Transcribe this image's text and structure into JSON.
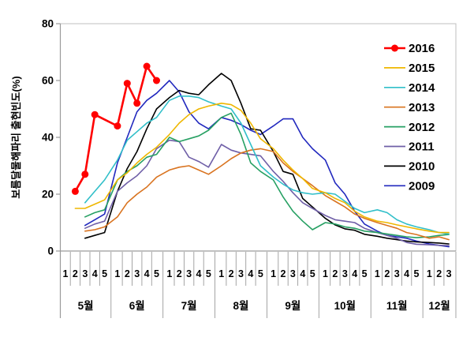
{
  "colors": {
    "background": "#ffffff",
    "plot_border": "#bfbfbf",
    "axis_line": "#9a9a9a",
    "separator_line": "#9a9a9a",
    "text": "#000000"
  },
  "chart_data": {
    "type": "line",
    "title": "",
    "y_axis": {
      "label": "보름달물해파리 출현빈도(%)",
      "min": 0,
      "max": 80,
      "ticks": [
        0,
        20,
        40,
        60,
        80
      ]
    },
    "x_axis": {
      "months": [
        {
          "label": "5월",
          "week_labels": [
            "1",
            "2",
            "3",
            "4",
            "5"
          ]
        },
        {
          "label": "6월",
          "week_labels": [
            "1",
            "2",
            "3",
            "4",
            "5"
          ]
        },
        {
          "label": "7월",
          "week_labels": [
            "1",
            "2",
            "3",
            "4",
            "5"
          ]
        },
        {
          "label": "8월",
          "week_labels": [
            "1",
            "2",
            "3",
            "4",
            "5"
          ]
        },
        {
          "label": "9월",
          "week_labels": [
            "1",
            "2",
            "3",
            "4",
            "5"
          ]
        },
        {
          "label": "10월",
          "week_labels": [
            "1",
            "2",
            "3",
            "4",
            "5"
          ]
        },
        {
          "label": "11월",
          "week_labels": [
            "1",
            "2",
            "3",
            "4",
            "5"
          ]
        },
        {
          "label": "12월",
          "week_labels": [
            "1",
            "2",
            "3"
          ]
        }
      ]
    },
    "legend": {
      "position": "right-inside",
      "order": [
        "2016",
        "2015",
        "2014",
        "2013",
        "2012",
        "2011",
        "2010",
        "2009"
      ]
    },
    "series": [
      {
        "name": "2016",
        "color": "#ff0000",
        "line_width": 2.6,
        "marker": true,
        "values": [
          null,
          21,
          27,
          48,
          null,
          44,
          59,
          52,
          65,
          60,
          null,
          null,
          null,
          null,
          null,
          null,
          null,
          null,
          null,
          null,
          null,
          null,
          null,
          null,
          null,
          null,
          null,
          null,
          null,
          null,
          null,
          null,
          null,
          null,
          null,
          null,
          null,
          null
        ]
      },
      {
        "name": "2015",
        "color": "#efb700",
        "line_width": 1.6,
        "marker": false,
        "values": [
          null,
          15,
          15,
          16.5,
          18,
          25,
          27.5,
          31,
          34,
          36.5,
          41,
          45,
          48,
          50,
          51,
          52,
          51.5,
          49.5,
          45,
          39.5,
          36,
          32,
          28.5,
          25.5,
          22,
          20.5,
          18.5,
          17,
          14,
          12,
          10.5,
          10,
          9.2,
          8.5,
          7.8,
          7,
          6.5,
          6.5
        ]
      },
      {
        "name": "2014",
        "color": "#31bfc9",
        "line_width": 1.6,
        "marker": false,
        "values": [
          null,
          null,
          17,
          21,
          25,
          32,
          39,
          42,
          45,
          47,
          53,
          54.5,
          54.5,
          54,
          52.5,
          51,
          50,
          45,
          37.5,
          30,
          26,
          23.5,
          21.5,
          20.5,
          20,
          20.5,
          20,
          17.5,
          15,
          13.5,
          14.5,
          13.5,
          11,
          9.5,
          8.5,
          7.5,
          6.5,
          6
        ]
      },
      {
        "name": "2013",
        "color": "#d9731f",
        "line_width": 1.6,
        "marker": false,
        "values": [
          null,
          null,
          7,
          7.5,
          8.5,
          12,
          17,
          20,
          22.5,
          26,
          28.5,
          29.5,
          30,
          28.5,
          27,
          30,
          32.5,
          34.5,
          35.5,
          36,
          35,
          31,
          28,
          25.5,
          23,
          19.5,
          17.5,
          15.5,
          13,
          11.5,
          10,
          9,
          8,
          6.5,
          5.8,
          4.5,
          5,
          4
        ]
      },
      {
        "name": "2012",
        "color": "#27a063",
        "line_width": 1.6,
        "marker": false,
        "values": [
          null,
          null,
          12,
          13.5,
          14.5,
          25,
          28,
          30,
          33,
          34,
          40,
          38.5,
          39.5,
          40.5,
          42.5,
          47,
          48.5,
          41,
          31,
          28,
          25,
          19,
          14,
          10.5,
          7.5,
          10,
          9.5,
          8.5,
          8,
          7,
          6.5,
          6,
          5.5,
          5,
          4.7,
          5,
          5.5,
          5.8
        ]
      },
      {
        "name": "2011",
        "color": "#6f5fa7",
        "line_width": 1.6,
        "marker": false,
        "values": [
          null,
          null,
          8,
          9.5,
          10.5,
          21,
          24,
          26.5,
          30,
          36,
          39,
          38.5,
          33,
          31.5,
          29.5,
          37.5,
          35.5,
          34.5,
          34,
          33.5,
          28,
          24.5,
          20.5,
          17,
          15,
          12.5,
          11,
          10.5,
          10,
          8,
          6.5,
          5.5,
          4.5,
          3,
          2.4,
          2.2,
          2,
          1.9
        ]
      },
      {
        "name": "2010",
        "color": "#000000",
        "line_width": 1.6,
        "marker": false,
        "values": [
          null,
          null,
          4.5,
          5.5,
          6.5,
          21,
          29,
          35,
          43,
          50,
          54,
          56.5,
          55.5,
          55,
          58.5,
          62.5,
          60,
          52,
          43,
          42.5,
          35,
          28,
          27,
          18.5,
          15.5,
          11.5,
          9.2,
          7.8,
          7.3,
          5.9,
          5.2,
          4.5,
          4,
          3.5,
          3.2,
          3,
          2.8,
          2.5
        ]
      },
      {
        "name": "2009",
        "color": "#2128be",
        "line_width": 1.6,
        "marker": false,
        "values": [
          null,
          null,
          9,
          11,
          13,
          31,
          40,
          49,
          53,
          55.5,
          60,
          56,
          49,
          45,
          43,
          47,
          46,
          44.5,
          42.5,
          41,
          44,
          46.5,
          46.5,
          40,
          36,
          32,
          24,
          20,
          14,
          9.5,
          7,
          5.5,
          5,
          4.5,
          3.5,
          2.5,
          2,
          1.5
        ]
      }
    ]
  }
}
